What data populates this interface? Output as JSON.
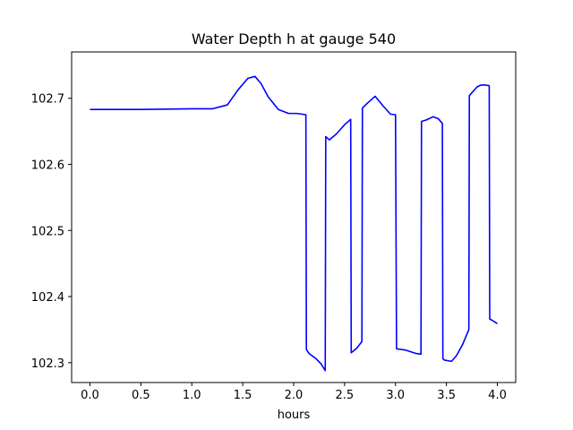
{
  "chart_data": {
    "type": "line",
    "title": "Water Depth h at gauge 540",
    "xlabel": "hours",
    "ylabel": "",
    "xlim": [
      -0.18,
      4.18
    ],
    "ylim": [
      102.27,
      102.77
    ],
    "xticks": [
      0.0,
      0.5,
      1.0,
      1.5,
      2.0,
      2.5,
      3.0,
      3.5,
      4.0
    ],
    "xtick_labels": [
      "0.0",
      "0.5",
      "1.0",
      "1.5",
      "2.0",
      "2.5",
      "3.0",
      "3.5",
      "4.0"
    ],
    "yticks": [
      102.3,
      102.4,
      102.5,
      102.6,
      102.7
    ],
    "ytick_labels": [
      "102.3",
      "102.4",
      "102.5",
      "102.6",
      "102.7"
    ],
    "grid": false,
    "series": [
      {
        "color": "#0000ff",
        "x": [
          0.0,
          0.5,
          1.0,
          1.2,
          1.35,
          1.45,
          1.55,
          1.62,
          1.68,
          1.75,
          1.85,
          1.95,
          2.03,
          2.08,
          2.12,
          2.125,
          2.15,
          2.22,
          2.27,
          2.31,
          2.315,
          2.35,
          2.42,
          2.5,
          2.56,
          2.565,
          2.62,
          2.67,
          2.675,
          2.72,
          2.8,
          2.88,
          2.95,
          3.0,
          3.01,
          3.1,
          3.2,
          3.25,
          3.255,
          3.3,
          3.37,
          3.42,
          3.46,
          3.465,
          3.48,
          3.55,
          3.6,
          3.66,
          3.72,
          3.725,
          3.8,
          3.84,
          3.88,
          3.92,
          3.925,
          3.95,
          4.0
        ],
        "y": [
          102.683,
          102.683,
          102.684,
          102.684,
          102.69,
          102.712,
          102.73,
          102.733,
          102.722,
          102.702,
          102.683,
          102.677,
          102.677,
          102.676,
          102.675,
          102.32,
          102.314,
          102.306,
          102.298,
          102.288,
          102.642,
          102.637,
          102.646,
          102.66,
          102.668,
          102.315,
          102.322,
          102.332,
          102.685,
          102.692,
          102.703,
          102.688,
          102.676,
          102.675,
          102.321,
          102.319,
          102.314,
          102.313,
          102.665,
          102.667,
          102.672,
          102.669,
          102.662,
          102.306,
          102.304,
          102.302,
          102.311,
          102.328,
          102.35,
          102.704,
          102.717,
          102.72,
          102.72,
          102.719,
          102.366,
          102.364,
          102.359
        ]
      }
    ]
  }
}
